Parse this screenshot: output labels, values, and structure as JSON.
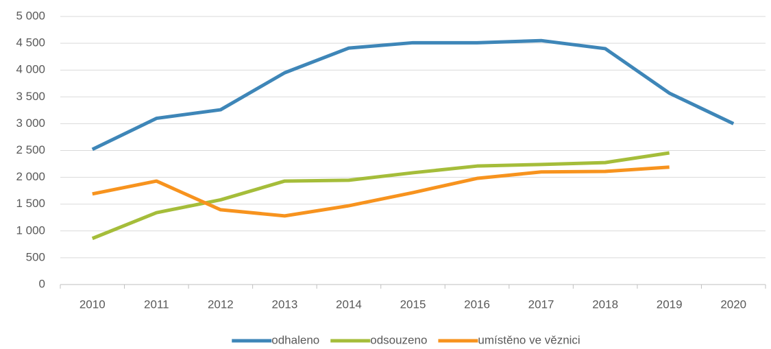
{
  "chart_data": {
    "type": "line",
    "categories": [
      "2010",
      "2011",
      "2012",
      "2013",
      "2014",
      "2015",
      "2016",
      "2017",
      "2018",
      "2019",
      "2020"
    ],
    "series": [
      {
        "name": "odhaleno",
        "color": "#3e86b8",
        "values": [
          2520,
          3100,
          3260,
          3950,
          4410,
          4510,
          4510,
          4550,
          4400,
          3570,
          3000
        ]
      },
      {
        "name": "odsouzeno",
        "color": "#a5bd3a",
        "values": [
          860,
          1340,
          1580,
          1930,
          1945,
          2085,
          2210,
          2240,
          2275,
          2455,
          null
        ]
      },
      {
        "name": "umístěno ve věznici",
        "color": "#f7931e",
        "values": [
          1690,
          1930,
          1395,
          1280,
          1470,
          1715,
          1980,
          2100,
          2110,
          2190,
          null
        ]
      }
    ],
    "ylim": [
      0,
      5000
    ],
    "yticks": [
      0,
      500,
      {
        "value": 1000,
        "label": "1 000"
      },
      {
        "value": 1500,
        "label": "1 500"
      },
      {
        "value": 2000,
        "label": "2 000"
      },
      {
        "value": 2500,
        "label": "2 500"
      },
      {
        "value": 3000,
        "label": "3 000"
      },
      {
        "value": 3500,
        "label": "3 500"
      },
      {
        "value": 4000,
        "label": "4 000"
      },
      {
        "value": 4500,
        "label": "4 500"
      },
      {
        "value": 5000,
        "label": "5 000"
      }
    ],
    "grid": true,
    "legend": "bottom"
  }
}
